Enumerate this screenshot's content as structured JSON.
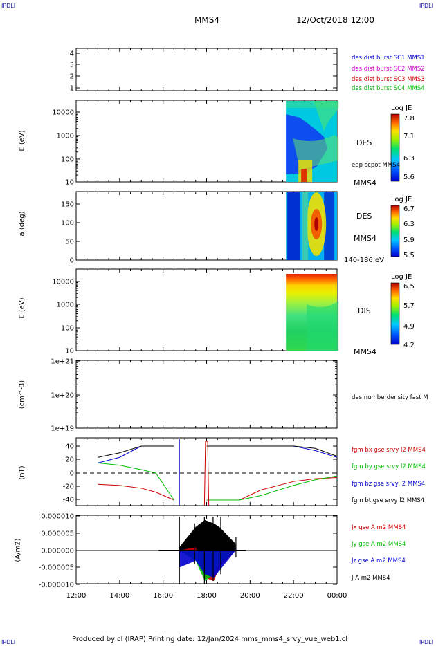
{
  "header": {
    "corner_left": "IPDLI",
    "corner_right": "IPDLI",
    "spacecraft": "MMS4",
    "date": "12/Oct/2018 12:00"
  },
  "footer": {
    "text": "Produced by cl (IRAP)   Printing date: 12/Jan/2024   mms_mms4_srvy_vue_web1.cl",
    "corner_left": "IPDLI",
    "corner_right": "IPDLI"
  },
  "time_axis": {
    "labels": [
      "12:00",
      "14:00",
      "16:00",
      "18:00",
      "20:00",
      "22:00",
      "00:00"
    ]
  },
  "panels": {
    "availability": {
      "yticks": [
        "4",
        "3",
        "2",
        "1"
      ],
      "legend": [
        {
          "text": "des dist burst SC1 MMS1",
          "color": "#0000cc"
        },
        {
          "text": "des dist burst SC2 MMS2",
          "color": "#cc00cc"
        },
        {
          "text": "des dist burst SC3 MMS3",
          "color": "#cc0000"
        },
        {
          "text": "des dist burst SC4 MMS4",
          "color": "#00bb00"
        }
      ]
    },
    "des_energy": {
      "ylabel": "E (eV)",
      "yticks": [
        "10000",
        "1000",
        "100",
        "10"
      ],
      "label_main": "DES",
      "label_scpot": "edp scpot MMS4",
      "label_sc": "MMS4",
      "colorbar": {
        "title": "Log JE",
        "ticks": [
          "7.8",
          "7.1",
          "6.3",
          "5.6"
        ]
      }
    },
    "des_pitch": {
      "ylabel": "a (deg)",
      "yticks": [
        "150",
        "100",
        "50",
        "0"
      ],
      "label_main": "DES",
      "label_sc": "MMS4",
      "label_range": "140-186 eV",
      "colorbar": {
        "title": "Log JE",
        "ticks": [
          "6.7",
          "6.3",
          "5.9",
          "5.5"
        ]
      }
    },
    "dis_energy": {
      "ylabel": "E (eV)",
      "yticks": [
        "10000",
        "1000",
        "100",
        "10"
      ],
      "label_main": "DIS",
      "label_sc": "MMS4",
      "colorbar": {
        "title": "Log JE",
        "ticks": [
          "6.5",
          "5.7",
          "4.9",
          "4.2"
        ]
      }
    },
    "density": {
      "ylabel": "(cm^-3)",
      "yticks": [
        "1e+21",
        "1e+20",
        "1e+19"
      ],
      "legend": "des numberdensity fast M"
    },
    "bfield": {
      "ylabel": "(nT)",
      "yticks": [
        "40",
        "20",
        "0",
        "-20",
        "-40"
      ],
      "legend": [
        {
          "text": "fgm bx gse srvy l2 MMS4",
          "color": "#cc0000"
        },
        {
          "text": "fgm by gse srvy l2 MMS4",
          "color": "#00bb00"
        },
        {
          "text": "fgm bz gse srvy l2 MMS4",
          "color": "#0000cc"
        },
        {
          "text": "fgm bt gse srvy l2 MMS4",
          "color": "#000000"
        }
      ]
    },
    "current": {
      "ylabel": "(A/m2)",
      "yticks": [
        "0.000010",
        "0.000005",
        "0.000000",
        "-0.000005",
        "-0.000010"
      ],
      "legend": [
        {
          "text": "Jx gse A m2 MMS4",
          "color": "#cc0000"
        },
        {
          "text": "Jy gse A m2 MMS4",
          "color": "#00bb00"
        },
        {
          "text": "Jz gse A m2 MMS4",
          "color": "#0000cc"
        },
        {
          "text": "J A m2 MMS4",
          "color": "#000000"
        }
      ]
    }
  },
  "chart_data": [
    {
      "type": "line",
      "x": [
        "13:00",
        "14:00",
        "15:00",
        "15:40",
        "16:30",
        "18:00",
        "19:30",
        "20:30",
        "22:00",
        "23:00",
        "00:00"
      ],
      "series": [
        {
          "name": "fgm bx gse srvy l2 MMS4",
          "values": [
            -20,
            -22,
            -27,
            -34,
            -48,
            -48,
            -48,
            -30,
            -15,
            -10,
            -8
          ]
        },
        {
          "name": "fgm by gse srvy l2 MMS4",
          "values": [
            18,
            14,
            6,
            0,
            -48,
            -48,
            -48,
            -40,
            -22,
            -12,
            -5
          ]
        },
        {
          "name": "fgm bz gse srvy l2 MMS4",
          "values": [
            18,
            28,
            48,
            48,
            48,
            48,
            48,
            48,
            48,
            40,
            28
          ]
        },
        {
          "name": "fgm bt gse srvy l2 MMS4",
          "values": [
            28,
            36,
            48,
            48,
            48,
            48,
            48,
            48,
            48,
            44,
            30
          ]
        }
      ],
      "ylim": [
        -48,
        48
      ]
    },
    {
      "type": "line",
      "x": [
        "16:45",
        "17:30",
        "17:55",
        "18:20",
        "18:35",
        "19:20"
      ],
      "series": [
        {
          "name": "J A m2 MMS4",
          "values": [
            1e-06,
            7e-06,
            9e-06,
            8e-06,
            7e-06,
            2e-06
          ]
        },
        {
          "name": "Jx gse A m2 MMS4",
          "values": [
            0.0,
            1e-06,
            -8e-06,
            -9e-06,
            -5e-06,
            0.0
          ]
        },
        {
          "name": "Jy gse A m2 MMS4",
          "values": [
            0.0,
            -3e-06,
            -9e-06,
            -7e-06,
            -4e-06,
            0.0
          ]
        },
        {
          "name": "Jz gse A m2 MMS4",
          "values": [
            -5e-06,
            -3e-06,
            -7e-06,
            -8e-06,
            -6e-06,
            0.0
          ]
        }
      ],
      "ylim": [
        -1e-05,
        1e-05
      ]
    }
  ]
}
